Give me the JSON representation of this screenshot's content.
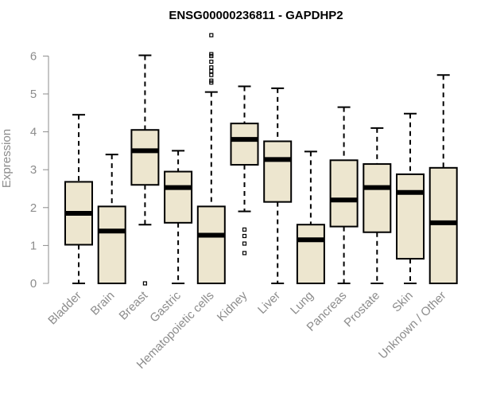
{
  "chart_data": {
    "type": "boxplot",
    "title": "ENSG00000236811 - GAPDHP2",
    "xlabel": "",
    "ylabel": "Expression",
    "ylim": [
      0,
      6.5
    ],
    "yticks": [
      "0",
      "1",
      "2",
      "3",
      "4",
      "5",
      "6"
    ],
    "categories": [
      "Bladder",
      "Brain",
      "Breast",
      "Gastric",
      "Hematopoietic cells",
      "Kidney",
      "Liver",
      "Lung",
      "Pancreas",
      "Prostate",
      "Skin",
      "Unknown / Other"
    ],
    "box_color": "#ede6cf",
    "series": [
      {
        "name": "Bladder",
        "min": 0,
        "q1": 1.02,
        "median": 1.85,
        "q3": 2.68,
        "max": 4.45,
        "outliers": []
      },
      {
        "name": "Brain",
        "min": 0,
        "q1": 0,
        "median": 1.38,
        "q3": 2.03,
        "max": 3.4,
        "outliers": []
      },
      {
        "name": "Breast",
        "min": 1.55,
        "q1": 2.6,
        "median": 3.5,
        "q3": 4.05,
        "max": 6.02,
        "outliers": [
          0
        ]
      },
      {
        "name": "Gastric",
        "min": 0,
        "q1": 1.6,
        "median": 2.53,
        "q3": 2.95,
        "max": 3.5,
        "outliers": []
      },
      {
        "name": "Hematopoietic cells",
        "min": 0,
        "q1": 0,
        "median": 1.27,
        "q3": 2.03,
        "max": 5.05,
        "outliers": [
          5.3,
          5.35,
          5.5,
          5.6,
          5.7,
          5.85,
          6.0,
          6.05,
          6.55
        ]
      },
      {
        "name": "Kidney",
        "min": 1.9,
        "q1": 3.13,
        "median": 3.8,
        "q3": 4.22,
        "max": 5.2,
        "outliers": [
          0.8,
          1.05,
          1.25,
          1.42
        ]
      },
      {
        "name": "Liver",
        "min": 0,
        "q1": 2.15,
        "median": 3.27,
        "q3": 3.75,
        "max": 5.15,
        "outliers": []
      },
      {
        "name": "Lung",
        "min": 0,
        "q1": 0,
        "median": 1.15,
        "q3": 1.55,
        "max": 3.48,
        "outliers": []
      },
      {
        "name": "Pancreas",
        "min": 0,
        "q1": 1.5,
        "median": 2.2,
        "q3": 3.25,
        "max": 4.65,
        "outliers": []
      },
      {
        "name": "Prostate",
        "min": 0,
        "q1": 1.35,
        "median": 2.53,
        "q3": 3.15,
        "max": 4.1,
        "outliers": []
      },
      {
        "name": "Skin",
        "min": 0,
        "q1": 0.65,
        "median": 2.4,
        "q3": 2.88,
        "max": 4.48,
        "outliers": []
      },
      {
        "name": "Unknown / Other",
        "min": 0,
        "q1": 0,
        "median": 1.6,
        "q3": 3.05,
        "max": 5.5,
        "outliers": []
      }
    ]
  }
}
